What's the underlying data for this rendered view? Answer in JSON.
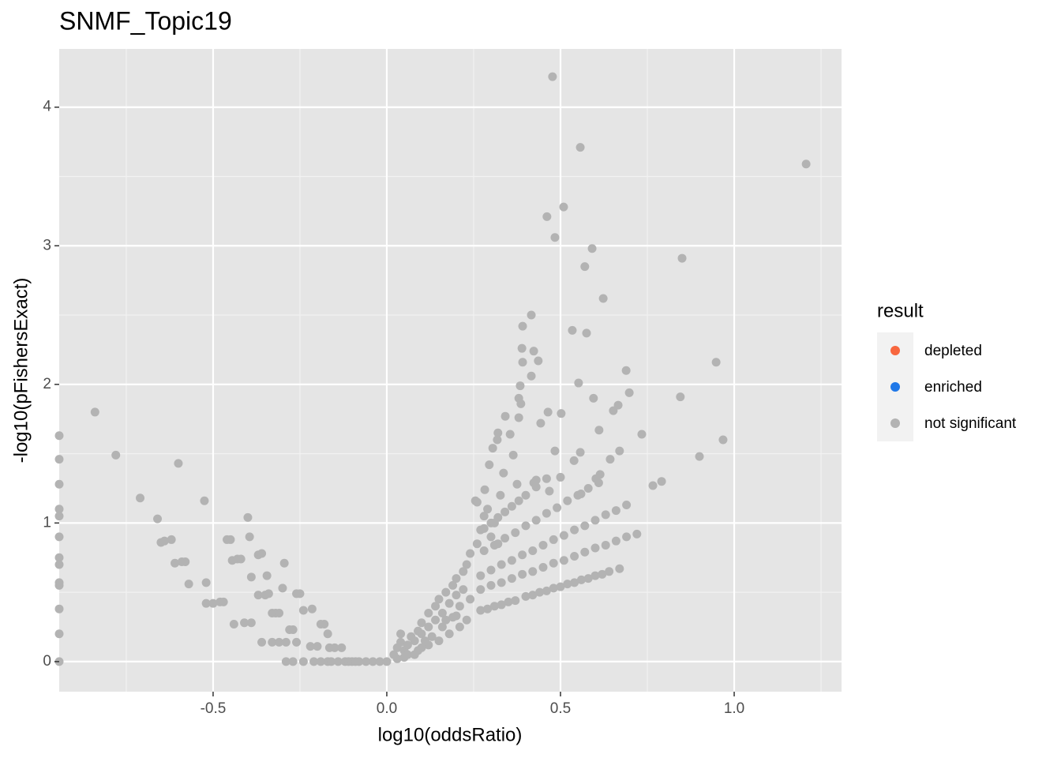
{
  "chart_data": {
    "type": "scatter",
    "title": "SNMF_Topic19",
    "x_label": "log10(oddsRatio)",
    "y_label": "-log10(pFishersExact)",
    "legend_title": "result",
    "legend_position": "right",
    "xlim": [
      -0.943,
      1.309
    ],
    "ylim": [
      -0.217,
      4.42
    ],
    "xticks": [
      -0.5,
      {
        "value": 0,
        "label": "0.0"
      },
      0.5,
      {
        "value": 1,
        "label": "1.0"
      }
    ],
    "yticks": [
      0,
      1,
      2,
      3,
      4
    ],
    "minor_xgrid": [
      -0.75,
      -0.25,
      0.25,
      0.75,
      1.25
    ],
    "minor_ygrid": [
      0.5,
      1.5,
      2.5,
      3.5
    ],
    "grid": true,
    "series": [
      {
        "name": "depleted",
        "color": "#f8673f",
        "x": [],
        "y": []
      },
      {
        "name": "enriched",
        "color": "#1f78e8",
        "x": [],
        "y": []
      },
      {
        "name": "not significant",
        "color": "#b3b3b3",
        "x": [
          0.477,
          0.557,
          1.207,
          0.461,
          0.509,
          0.484,
          0.591,
          0.85,
          0.57,
          0.623,
          0.416,
          0.391,
          0.534,
          0.575,
          0.389,
          0.423,
          0.391,
          0.436,
          0.948,
          0.689,
          0.416,
          0.384,
          0.552,
          0.595,
          0.845,
          0.698,
          0.38,
          0.386,
          0.666,
          0.652,
          0.464,
          0.502,
          0.38,
          0.443,
          0.341,
          0.32,
          0.355,
          0.611,
          0.734,
          0.968,
          0.318,
          0.305,
          0.557,
          0.484,
          0.67,
          0.364,
          0.9,
          0.643,
          0.539,
          0.295,
          0.336,
          0.614,
          0.5,
          0.602,
          0.791,
          0.766,
          0.43,
          0.375,
          0.282,
          0.423,
          0.327,
          0.468,
          0.559,
          0.255,
          0.27,
          0.29,
          0.31,
          0.33,
          0.35,
          0.37,
          0.4,
          0.42,
          0.44,
          0.46,
          0.48,
          0.5,
          0.52,
          0.54,
          0.56,
          0.58,
          0.6,
          0.62,
          0.64,
          0.67,
          0.27,
          0.3,
          0.33,
          0.36,
          0.39,
          0.42,
          0.45,
          0.48,
          0.51,
          0.54,
          0.57,
          0.6,
          0.63,
          0.66,
          0.69,
          0.72,
          0.27,
          0.3,
          0.33,
          0.36,
          0.39,
          0.42,
          0.45,
          0.48,
          0.51,
          0.54,
          0.57,
          0.6,
          0.63,
          0.66,
          0.69,
          0.28,
          0.31,
          0.34,
          0.37,
          0.4,
          0.43,
          0.46,
          0.49,
          0.52,
          0.55,
          0.58,
          0.61,
          0.28,
          0.3,
          0.32,
          0.34,
          0.36,
          0.38,
          0.4,
          0.43,
          0.46,
          0.02,
          0.03,
          0.04,
          0.04,
          0.05,
          0.06,
          0.07,
          0.08,
          0.09,
          0.1,
          0.1,
          0.12,
          0.12,
          0.14,
          0.14,
          0.15,
          0.16,
          0.17,
          0.18,
          0.19,
          0.2,
          0.2,
          0.21,
          0.22,
          0.22,
          0.23,
          0.24,
          0.24,
          0.26,
          0.27,
          0.28,
          0.29,
          0.26,
          0.3,
          0.31,
          0.32,
          0.03,
          0.06,
          0.09,
          0.12,
          0.15,
          0.18,
          0.21,
          0.1,
          0.13,
          0.16,
          0.17,
          0.19,
          0.11,
          0.08,
          0.05,
          0.23,
          0.2,
          -0.943,
          -0.943,
          -0.943,
          -0.943,
          -0.943,
          -0.943,
          -0.943,
          -0.943,
          -0.943,
          -0.943,
          -0.943,
          -0.943,
          -0.943,
          -0.84,
          -0.78,
          -0.71,
          -0.66,
          -0.65,
          -0.64,
          -0.62,
          -0.61,
          -0.6,
          -0.59,
          -0.58,
          -0.57,
          -0.525,
          -0.52,
          -0.52,
          -0.5,
          -0.48,
          -0.47,
          -0.46,
          -0.45,
          -0.44,
          -0.445,
          -0.43,
          -0.42,
          -0.41,
          -0.4,
          -0.395,
          -0.39,
          -0.39,
          -0.37,
          -0.36,
          -0.37,
          -0.36,
          -0.35,
          -0.34,
          -0.345,
          -0.33,
          -0.32,
          -0.31,
          -0.3,
          -0.295,
          -0.33,
          -0.31,
          -0.29,
          -0.29,
          -0.28,
          -0.27,
          -0.26,
          -0.25,
          -0.26,
          -0.24,
          -0.24,
          -0.22,
          -0.215,
          -0.21,
          -0.2,
          -0.19,
          -0.18,
          -0.17,
          -0.165,
          -0.15,
          -0.14,
          -0.13,
          -0.12,
          -0.11,
          -0.1,
          -0.09,
          -0.08,
          -0.06,
          -0.04,
          -0.02,
          0.0,
          -0.27,
          -0.19,
          -0.17,
          -0.16
        ],
        "y": [
          4.22,
          3.71,
          3.59,
          3.21,
          3.28,
          3.06,
          2.98,
          2.91,
          2.85,
          2.62,
          2.5,
          2.42,
          2.39,
          2.37,
          2.26,
          2.24,
          2.16,
          2.17,
          2.16,
          2.1,
          2.06,
          1.99,
          2.01,
          1.9,
          1.91,
          1.94,
          1.9,
          1.86,
          1.85,
          1.81,
          1.8,
          1.79,
          1.76,
          1.72,
          1.77,
          1.65,
          1.64,
          1.67,
          1.64,
          1.6,
          1.6,
          1.54,
          1.51,
          1.52,
          1.52,
          1.49,
          1.48,
          1.46,
          1.45,
          1.42,
          1.36,
          1.35,
          1.33,
          1.32,
          1.3,
          1.27,
          1.31,
          1.28,
          1.24,
          1.29,
          1.2,
          1.23,
          1.21,
          1.16,
          0.37,
          0.38,
          0.4,
          0.41,
          0.43,
          0.44,
          0.47,
          0.48,
          0.5,
          0.51,
          0.53,
          0.54,
          0.56,
          0.57,
          0.59,
          0.6,
          0.62,
          0.63,
          0.65,
          0.67,
          0.52,
          0.55,
          0.57,
          0.6,
          0.63,
          0.65,
          0.68,
          0.71,
          0.73,
          0.76,
          0.79,
          0.82,
          0.84,
          0.87,
          0.9,
          0.92,
          0.62,
          0.66,
          0.7,
          0.73,
          0.77,
          0.8,
          0.84,
          0.88,
          0.91,
          0.95,
          0.98,
          1.02,
          1.06,
          1.09,
          1.13,
          0.8,
          0.84,
          0.89,
          0.93,
          0.98,
          1.02,
          1.07,
          1.11,
          1.16,
          1.2,
          1.25,
          1.29,
          0.96,
          1.0,
          1.04,
          1.08,
          1.12,
          1.16,
          1.2,
          1.26,
          1.32,
          0.05,
          0.1,
          0.14,
          0.2,
          0.08,
          0.12,
          0.18,
          0.15,
          0.22,
          0.2,
          0.28,
          0.25,
          0.35,
          0.3,
          0.4,
          0.45,
          0.35,
          0.5,
          0.42,
          0.55,
          0.48,
          0.6,
          0.4,
          0.65,
          0.52,
          0.7,
          0.45,
          0.78,
          0.85,
          0.95,
          1.05,
          1.1,
          1.15,
          0.9,
          1.0,
          0.85,
          0.02,
          0.05,
          0.08,
          0.12,
          0.15,
          0.2,
          0.25,
          0.1,
          0.18,
          0.25,
          0.3,
          0.32,
          0.15,
          0.05,
          0.03,
          0.3,
          0.33,
          1.63,
          1.46,
          1.28,
          1.1,
          1.05,
          0.9,
          0.75,
          0.7,
          0.57,
          0.55,
          0.38,
          0.2,
          0.0,
          1.8,
          1.49,
          1.18,
          1.03,
          0.86,
          0.87,
          0.88,
          0.71,
          1.43,
          0.72,
          0.72,
          0.56,
          1.16,
          0.57,
          0.42,
          0.42,
          0.43,
          0.43,
          0.88,
          0.88,
          0.27,
          0.73,
          0.74,
          0.74,
          0.28,
          1.04,
          0.9,
          0.61,
          0.28,
          0.77,
          0.78,
          0.48,
          0.14,
          0.48,
          0.49,
          0.62,
          0.35,
          0.35,
          0.35,
          0.53,
          0.71,
          0.14,
          0.14,
          0.14,
          0.0,
          0.23,
          0.23,
          0.49,
          0.49,
          0.14,
          0.37,
          0.0,
          0.11,
          0.38,
          0.0,
          0.11,
          0.27,
          0.27,
          0.2,
          0.1,
          0.1,
          0.0,
          0.1,
          0.0,
          0.0,
          0.0,
          0.0,
          0.0,
          0.0,
          0.0,
          0.0,
          0.0,
          0.0,
          0.0,
          0.0,
          0.0
        ]
      }
    ]
  }
}
